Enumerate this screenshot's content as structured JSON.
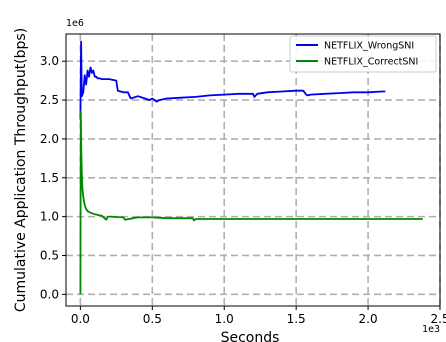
{
  "chart_data": {
    "type": "line",
    "xlabel": "Seconds",
    "ylabel": "Cumulative Application Throughput(bps)",
    "x_offset_label": "1e3",
    "y_offset_label": "1e6",
    "xlim": [
      -0.1,
      2.5
    ],
    "ylim": [
      -0.15,
      3.35
    ],
    "x_ticks": [
      0.0,
      0.5,
      1.0,
      1.5,
      2.0,
      2.5
    ],
    "x_tick_labels": [
      "0.0",
      "0.5",
      "1.0",
      "1.5",
      "2.0",
      "2.5"
    ],
    "y_ticks": [
      0.0,
      0.5,
      1.0,
      1.5,
      2.0,
      2.5,
      3.0
    ],
    "y_tick_labels": [
      "0.0",
      "0.5",
      "1.0",
      "1.5",
      "2.0",
      "2.5",
      "3.0"
    ],
    "grid": true,
    "legend_position": "top-right",
    "series": [
      {
        "name": "NETFLIX_WrongSNI",
        "color": "#0000ee",
        "x": [
          0.0,
          0.005,
          0.01,
          0.02,
          0.03,
          0.04,
          0.05,
          0.06,
          0.07,
          0.08,
          0.09,
          0.1,
          0.11,
          0.12,
          0.13,
          0.15,
          0.2,
          0.25,
          0.26,
          0.3,
          0.33,
          0.35,
          0.4,
          0.45,
          0.48,
          0.5,
          0.53,
          0.55,
          0.6,
          0.7,
          0.8,
          0.9,
          1.0,
          1.1,
          1.2,
          1.21,
          1.23,
          1.3,
          1.4,
          1.5,
          1.55,
          1.57,
          1.58,
          1.6,
          1.7,
          1.8,
          1.9,
          2.0,
          2.1,
          2.12
        ],
        "y": [
          2.25,
          3.25,
          2.55,
          2.6,
          2.82,
          2.7,
          2.88,
          2.8,
          2.92,
          2.85,
          2.88,
          2.8,
          2.8,
          2.78,
          2.78,
          2.77,
          2.77,
          2.75,
          2.62,
          2.6,
          2.6,
          2.52,
          2.55,
          2.52,
          2.5,
          2.52,
          2.48,
          2.5,
          2.52,
          2.53,
          2.54,
          2.56,
          2.57,
          2.58,
          2.58,
          2.54,
          2.58,
          2.6,
          2.61,
          2.62,
          2.62,
          2.57,
          2.56,
          2.57,
          2.58,
          2.59,
          2.6,
          2.6,
          2.61,
          2.61
        ]
      },
      {
        "name": "NETFLIX_CorrectSNI",
        "color": "#008800",
        "x": [
          0.0,
          0.003,
          0.006,
          0.01,
          0.015,
          0.02,
          0.03,
          0.04,
          0.05,
          0.07,
          0.1,
          0.15,
          0.18,
          0.19,
          0.2,
          0.3,
          0.31,
          0.4,
          0.5,
          0.6,
          0.7,
          0.78,
          0.79,
          0.8,
          1.0,
          1.2,
          1.5,
          1.8,
          2.0,
          2.2,
          2.38
        ],
        "y": [
          0.0,
          2.35,
          1.9,
          1.55,
          1.35,
          1.25,
          1.15,
          1.1,
          1.07,
          1.05,
          1.03,
          1.01,
          0.96,
          1.0,
          1.0,
          0.99,
          0.96,
          0.99,
          0.99,
          0.98,
          0.98,
          0.98,
          0.95,
          0.97,
          0.97,
          0.97,
          0.97,
          0.97,
          0.97,
          0.97,
          0.97
        ]
      }
    ]
  }
}
